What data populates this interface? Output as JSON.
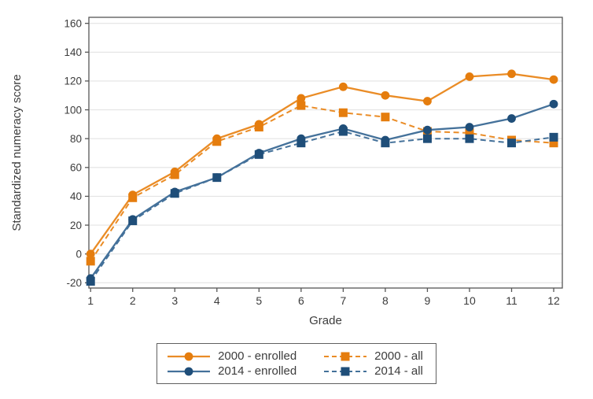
{
  "chart_data": {
    "type": "line",
    "title": "",
    "xlabel": "Grade",
    "ylabel": "Standardized numeracy score",
    "x": [
      1,
      2,
      3,
      4,
      5,
      6,
      7,
      8,
      9,
      10,
      11,
      12
    ],
    "xtick_labels": [
      "1",
      "2",
      "3",
      "4",
      "5",
      "6",
      "7",
      "8",
      "9",
      "10",
      "11",
      "12"
    ],
    "ylim": [
      -20,
      160
    ],
    "ytick_step": 20,
    "ytick_labels": [
      "-20",
      "0",
      "20",
      "40",
      "60",
      "80",
      "100",
      "120",
      "140",
      "160"
    ],
    "grid": "horizontal",
    "legend_position": "bottom-center",
    "series": [
      {
        "name": "2000 - enrolled",
        "line_style": "solid",
        "marker": "circle",
        "line_color": "#EA8C26",
        "marker_color": "#E57D0E",
        "values": [
          0,
          41,
          57,
          80,
          90,
          108,
          116,
          110,
          106,
          123,
          125,
          121
        ]
      },
      {
        "name": "2000 - all",
        "line_style": "dashed",
        "marker": "square",
        "line_color": "#EA8C26",
        "marker_color": "#E57D0E",
        "values": [
          -5,
          39,
          55,
          78,
          88,
          103,
          98,
          95,
          85,
          84,
          79,
          77
        ]
      },
      {
        "name": "2014 - enrolled",
        "line_style": "solid",
        "marker": "circle",
        "line_color": "#44719A",
        "marker_color": "#1F4E79",
        "values": [
          -17,
          24,
          43,
          53,
          70,
          80,
          87,
          79,
          86,
          88,
          94,
          104
        ]
      },
      {
        "name": "2014 - all",
        "line_style": "dashed",
        "marker": "square",
        "line_color": "#44719A",
        "marker_color": "#1F4E79",
        "values": [
          -19,
          23,
          42,
          53,
          69,
          77,
          85,
          77,
          80,
          80,
          77,
          81
        ]
      }
    ],
    "colors": {
      "grid": "#E3E3E3",
      "axis": "#565656",
      "text": "#3C3C3C",
      "background": "#FFFFFF"
    }
  }
}
